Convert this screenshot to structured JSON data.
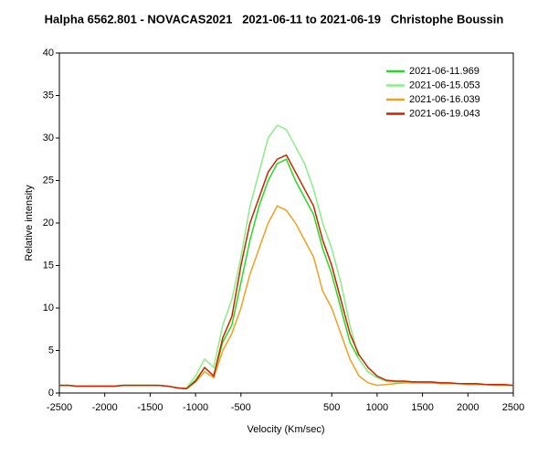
{
  "chart_data": {
    "type": "line",
    "title": "Halpha 6562.801 - NOVACAS2021   2021-06-11 to 2021-06-19   Christophe Boussin",
    "x_label": "Velocity (Km/sec)",
    "y_label": "Relative intensity",
    "x": [
      -2500,
      -2400,
      -2300,
      -2200,
      -2100,
      -2000,
      -1900,
      -1800,
      -1700,
      -1600,
      -1500,
      -1400,
      -1300,
      -1200,
      -1100,
      -1000,
      -900,
      -800,
      -700,
      -600,
      -500,
      -400,
      -300,
      -200,
      -100,
      0,
      100,
      200,
      300,
      400,
      500,
      600,
      700,
      800,
      900,
      1000,
      1100,
      1200,
      1300,
      1400,
      1500,
      1600,
      1700,
      1800,
      1900,
      2000,
      2100,
      2200,
      2300,
      2400,
      2500
    ],
    "series": [
      {
        "name": "2021-06-11.969",
        "color": "#22dd22",
        "values": [
          0.9,
          0.9,
          0.8,
          0.8,
          0.8,
          0.8,
          0.8,
          0.9,
          0.9,
          0.9,
          0.9,
          0.9,
          0.8,
          0.6,
          0.5,
          1.5,
          3,
          2,
          6,
          8,
          13,
          18,
          22,
          25,
          27,
          27.5,
          25,
          23,
          21,
          17,
          14,
          10,
          6,
          4,
          2.5,
          1.8,
          1.4,
          1.3,
          1.3,
          1.3,
          1.2,
          1.2,
          1.2,
          1.1,
          1.1,
          1.1,
          1,
          1,
          1,
          0.9,
          0.9
        ]
      },
      {
        "name": "2021-06-15.053",
        "color": "#88ee88",
        "values": [
          0.9,
          0.9,
          0.8,
          0.8,
          0.8,
          0.8,
          0.8,
          0.9,
          0.9,
          0.9,
          0.9,
          0.9,
          0.8,
          0.6,
          0.6,
          2,
          4,
          3,
          8,
          11,
          16,
          22,
          26,
          30,
          31.5,
          31,
          29,
          27,
          24,
          20,
          17,
          13,
          8,
          4,
          2.5,
          1.8,
          1.4,
          1.3,
          1.3,
          1.3,
          1.2,
          1.2,
          1.2,
          1.1,
          1.1,
          1.1,
          1,
          1,
          1,
          0.9,
          0.9
        ]
      },
      {
        "name": "2021-06-16.039",
        "color": "#f0a020",
        "values": [
          0.9,
          0.9,
          0.8,
          0.8,
          0.8,
          0.8,
          0.8,
          0.9,
          0.9,
          0.9,
          0.9,
          0.9,
          0.8,
          0.6,
          0.5,
          1.3,
          2.5,
          1.8,
          5,
          7,
          10,
          14,
          17,
          20,
          22,
          21.5,
          20,
          18,
          16,
          12,
          10,
          7,
          4,
          2,
          1.2,
          0.9,
          1,
          1.1,
          1.2,
          1.2,
          1.2,
          1.2,
          1.1,
          1.1,
          1.1,
          1,
          1,
          1,
          0.9,
          0.9,
          0.9
        ]
      },
      {
        "name": "2021-06-19.043",
        "color": "#cc2200",
        "values": [
          0.9,
          0.9,
          0.8,
          0.8,
          0.8,
          0.8,
          0.8,
          0.9,
          0.9,
          0.9,
          0.9,
          0.9,
          0.8,
          0.6,
          0.5,
          1.4,
          3,
          2,
          6.5,
          9,
          15,
          20,
          23,
          26,
          27.5,
          28,
          26,
          24,
          22,
          18,
          15,
          11,
          7,
          4.5,
          3,
          2,
          1.5,
          1.4,
          1.4,
          1.3,
          1.3,
          1.3,
          1.2,
          1.2,
          1.1,
          1.1,
          1.1,
          1,
          1,
          1,
          0.9
        ]
      }
    ],
    "xlim": [
      -2500,
      2500
    ],
    "xticks": [
      -2500,
      -2000,
      -1500,
      -1000,
      -500,
      500,
      1000,
      1500,
      2000,
      2500
    ],
    "ylim": [
      0,
      40
    ],
    "yticks": [
      0,
      5,
      10,
      15,
      20,
      25,
      30,
      35,
      40
    ],
    "legend": "top-right",
    "grid": false
  }
}
